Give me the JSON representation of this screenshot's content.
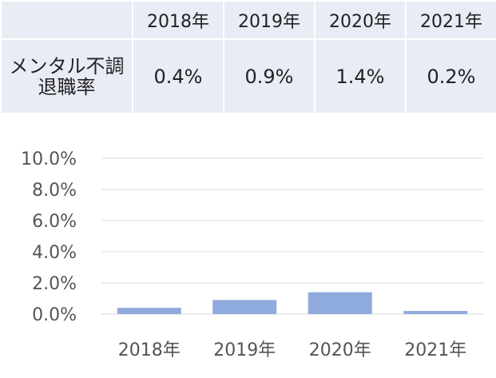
{
  "table": {
    "years": [
      "2018年",
      "2019年",
      "2020年",
      "2021年"
    ],
    "row_label_line1": "メンタル不調",
    "row_label_line2": "退職率",
    "values": [
      "0.4%",
      "0.9%",
      "1.4%",
      "0.2%"
    ]
  },
  "colors": {
    "table_bg": "#e9ebf5",
    "bar": "#8faadc",
    "grid": "#d9d9d9"
  },
  "chart_data": {
    "type": "bar",
    "categories": [
      "2018年",
      "2019年",
      "2020年",
      "2021年"
    ],
    "series": [
      {
        "values": [
          0.4,
          0.9,
          1.4,
          0.2
        ]
      }
    ],
    "ylim": [
      0,
      10
    ],
    "yticks": [
      "0.0%",
      "2.0%",
      "4.0%",
      "6.0%",
      "8.0%",
      "10.0%"
    ],
    "grid": true
  }
}
